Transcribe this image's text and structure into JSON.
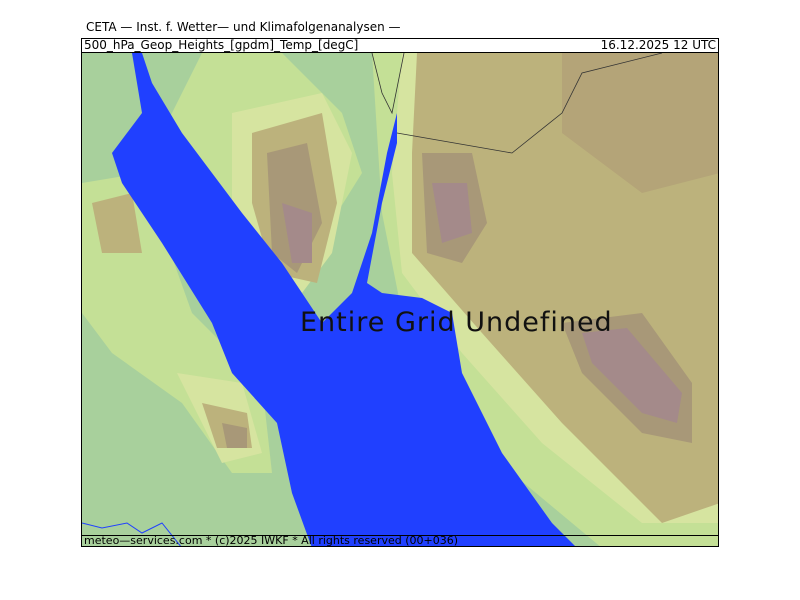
{
  "title": "CETA — Inst. f. Wetter— und Klimafolgenanalysen —",
  "header": {
    "field": "500_hPa_Geop_Heights_[gpdm]_Temp_[degC]",
    "datetime": "16.12.2025 12 UTC"
  },
  "map": {
    "message": "Entire Grid Undefined",
    "colors": {
      "water": "#2040ff",
      "low": "#a8d09c",
      "mid": "#c4e096",
      "light": "#d6e4a0",
      "tan": "#bcb27c",
      "brown": "#a89878",
      "peak": "#a48a8a"
    }
  },
  "footer": "meteo—services.com * (c)2025 IWKF * All rights reserved (00+036)"
}
